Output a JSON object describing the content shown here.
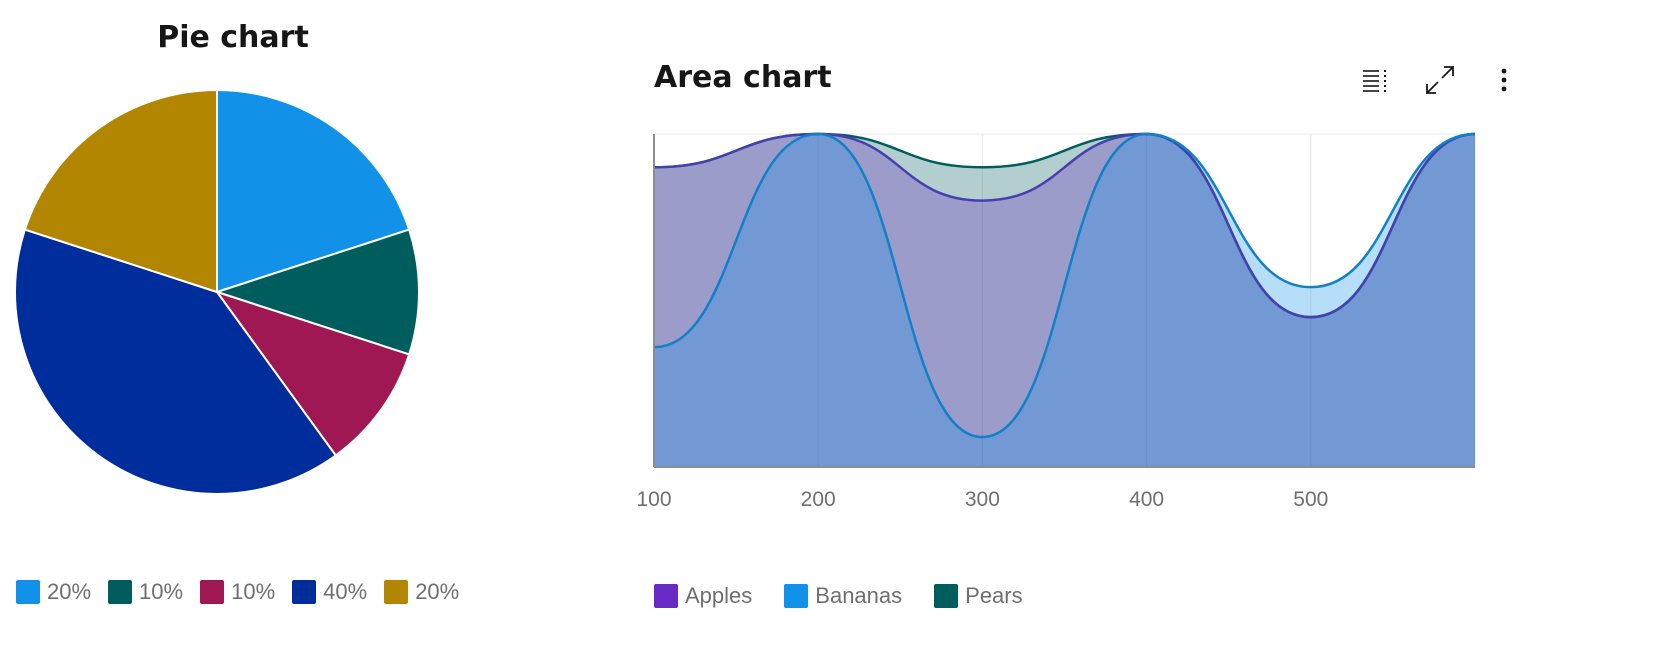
{
  "pie": {
    "title": "Pie chart",
    "legend": [
      {
        "label": "20%",
        "color": "#1192e8"
      },
      {
        "label": "10%",
        "color": "#005d5d"
      },
      {
        "label": "10%",
        "color": "#9f1853"
      },
      {
        "label": "40%",
        "color": "#002d9c"
      },
      {
        "label": "20%",
        "color": "#b28600"
      }
    ]
  },
  "area": {
    "title": "Area chart",
    "toolbar": {
      "icons": [
        "data-table-icon",
        "maximize-icon",
        "overflow-menu-icon"
      ]
    },
    "legend": [
      {
        "label": "Apples",
        "color": "#6929c4"
      },
      {
        "label": "Bananas",
        "color": "#1192e8"
      },
      {
        "label": "Pears",
        "color": "#005d5d"
      }
    ]
  },
  "chart_data": [
    {
      "type": "pie",
      "title": "Pie chart",
      "slices": [
        {
          "label": "20%",
          "value": 20,
          "color": "#1192e8"
        },
        {
          "label": "10%",
          "value": 10,
          "color": "#005d5d"
        },
        {
          "label": "10%",
          "value": 10,
          "color": "#9f1853"
        },
        {
          "label": "40%",
          "value": 40,
          "color": "#002d9c"
        },
        {
          "label": "20%",
          "value": 20,
          "color": "#b28600"
        }
      ],
      "legend_position": "bottom"
    },
    {
      "type": "area",
      "title": "Area chart",
      "stacked": false,
      "x": [
        100,
        200,
        300,
        400,
        500,
        600
      ],
      "x_tick_labels": [
        "100",
        "200",
        "300",
        "400",
        "500"
      ],
      "xlim": [
        100,
        600
      ],
      "ylim": [
        0,
        100
      ],
      "grid": true,
      "legend_position": "bottom",
      "series": [
        {
          "name": "Apples",
          "values": [
            90,
            100,
            80,
            100,
            45,
            100
          ],
          "color": "#6929c4",
          "line_color": "#4540b0"
        },
        {
          "name": "Bananas",
          "values": [
            36,
            100,
            9,
            100,
            54,
            100
          ],
          "color": "#1192e8",
          "line_color": "#1180c8"
        },
        {
          "name": "Pears",
          "values": [
            90,
            100,
            90,
            100,
            45,
            100
          ],
          "color": "#005d5d",
          "line_color": "#005d5d"
        }
      ]
    }
  ]
}
